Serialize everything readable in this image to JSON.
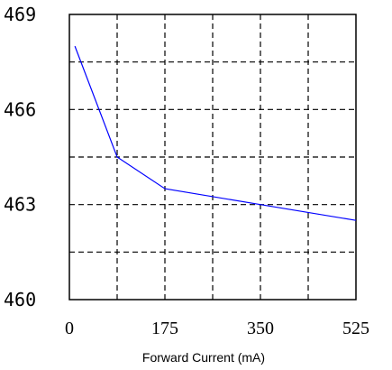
{
  "chart_data": {
    "type": "line",
    "title": "",
    "xlabel": "Forward Current (mA)",
    "ylabel": "",
    "xlim": [
      0,
      525
    ],
    "ylim": [
      460,
      469
    ],
    "x_ticks": [
      0,
      175,
      350,
      525
    ],
    "x_tick_labels": [
      "0",
      "175",
      "350",
      "525"
    ],
    "y_ticks": [
      460,
      463,
      466,
      469
    ],
    "y_tick_labels": [
      "460",
      "463",
      "466",
      "469"
    ],
    "grid": true,
    "grid_style": "dashed",
    "x_grid_step": 87.5,
    "y_grid_step": 1.5,
    "series": [
      {
        "color": "#0000ff",
        "x": [
          10,
          87.5,
          175,
          350,
          525
        ],
        "y": [
          468.0,
          464.5,
          463.5,
          463.0,
          462.5
        ]
      }
    ]
  }
}
